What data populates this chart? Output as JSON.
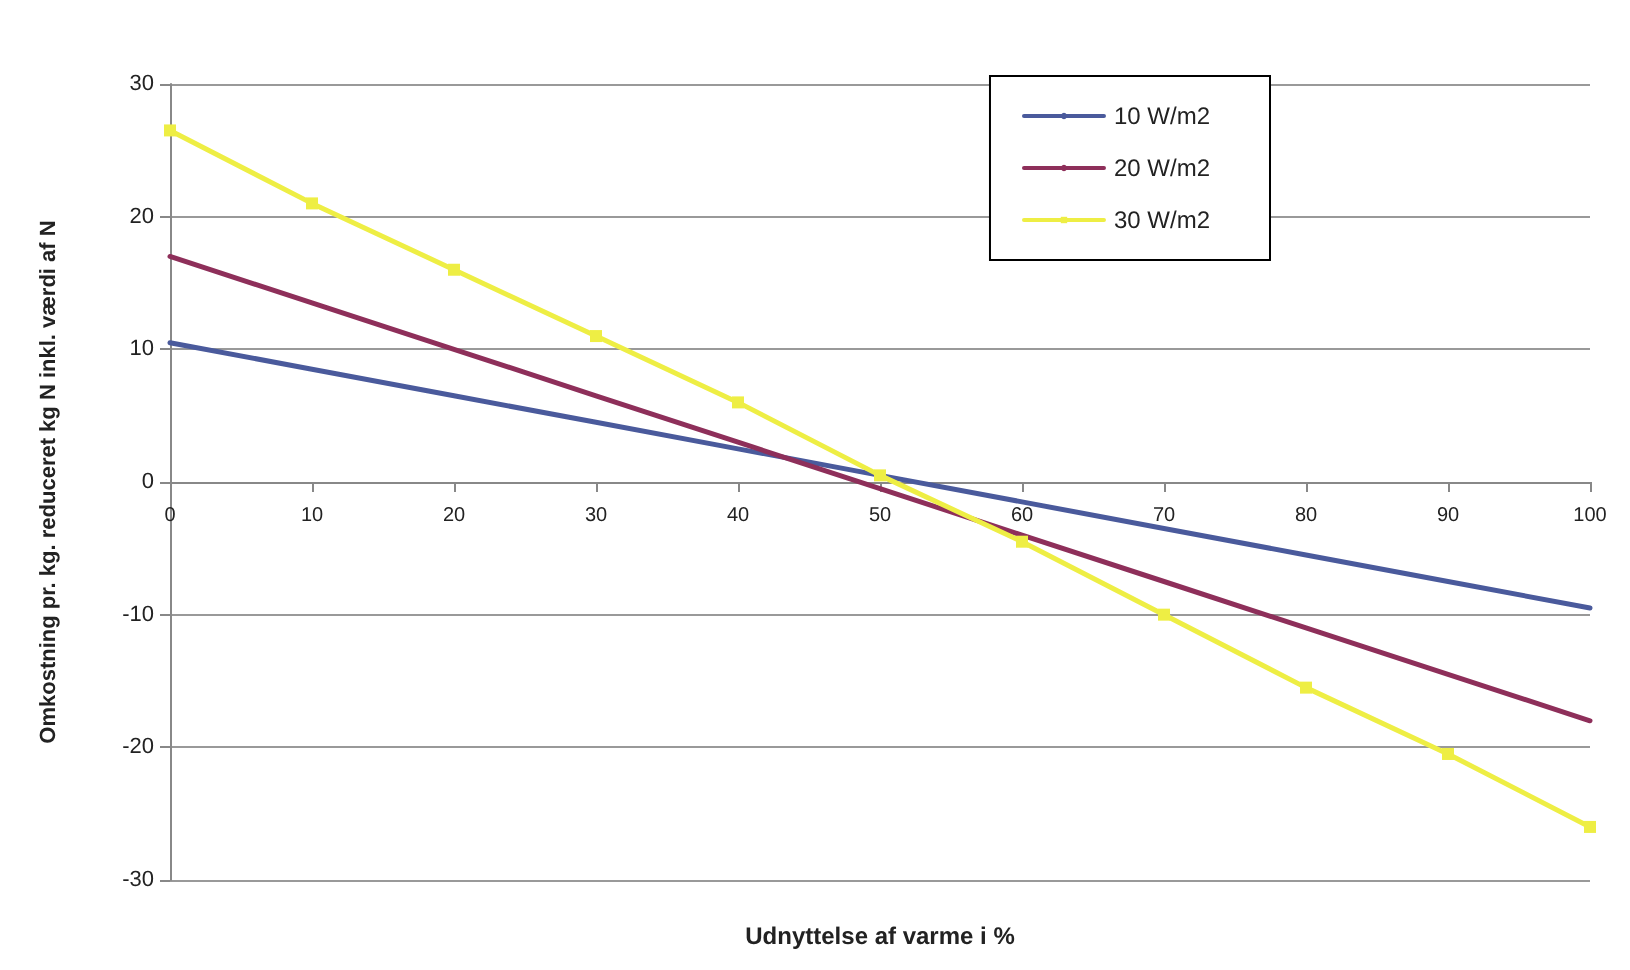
{
  "chart_data": {
    "type": "line",
    "xlabel": "Udnyttelse af varme i %",
    "ylabel": "Omkostning pr. kg. reduceret kg N inkl. værdi af N",
    "x": [
      0,
      10,
      20,
      30,
      40,
      50,
      60,
      70,
      80,
      90,
      100
    ],
    "series": [
      {
        "name": "10 W/m2",
        "color": "#4a5a9c",
        "marker": "none",
        "values": [
          10.5,
          8.5,
          6.5,
          4.5,
          2.5,
          0.5,
          -1.5,
          -3.5,
          -5.5,
          -7.5,
          -9.5
        ]
      },
      {
        "name": "20 W/m2",
        "color": "#8e2f5a",
        "marker": "none",
        "values": [
          17,
          13.5,
          10,
          6.5,
          3,
          -0.5,
          -4,
          -7.5,
          -11,
          -14.5,
          -18
        ]
      },
      {
        "name": "30 W/m2",
        "color": "#eeee44",
        "values": [
          26.5,
          21,
          16,
          11,
          6,
          0.5,
          -4.5,
          -10,
          -15.5,
          -20.5,
          -26
        ]
      }
    ],
    "xlim": [
      0,
      100
    ],
    "xticks": [
      0,
      10,
      20,
      30,
      40,
      50,
      60,
      70,
      80,
      90,
      100
    ],
    "ylim": [
      -30,
      30
    ],
    "yticks": [
      -30,
      -20,
      -10,
      0,
      10,
      20,
      30
    ],
    "grid": "y",
    "legend": "top right",
    "marker": "square"
  }
}
